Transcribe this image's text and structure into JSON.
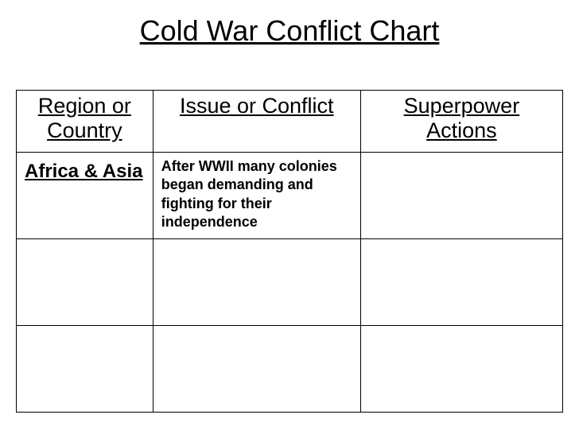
{
  "title": "Cold War Conflict Chart",
  "table": {
    "headers": {
      "region": "Region or Country",
      "issue": "Issue or Conflict",
      "superpower": "Superpower Actions"
    },
    "rows": [
      {
        "region": "Africa & Asia",
        "issue": "After WWII many colonies began demanding and fighting for their independence",
        "superpower": ""
      },
      {
        "region": "",
        "issue": "",
        "superpower": ""
      },
      {
        "region": "",
        "issue": "",
        "superpower": ""
      }
    ]
  },
  "style": {
    "title_fontsize": 36,
    "header_fontsize": 27,
    "region_fontsize": 24,
    "issue_fontsize": 18,
    "border_color": "#000000",
    "background_color": "#ffffff",
    "text_color": "#000000",
    "column_widths": {
      "region": "25%",
      "issue": "38%",
      "superpower": "37%"
    }
  }
}
